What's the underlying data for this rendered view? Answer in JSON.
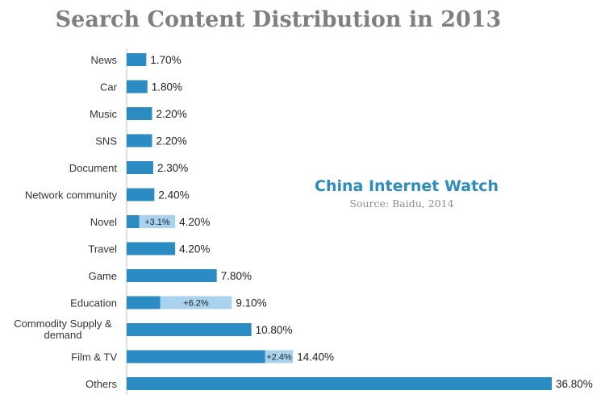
{
  "chart_data": {
    "type": "bar",
    "orientation": "horizontal",
    "title": "Search Content Distribution in 2013",
    "categories": [
      "News",
      "Car",
      "Music",
      "SNS",
      "Document",
      "Network community",
      "Novel",
      "Travel",
      "Game",
      "Education",
      "Commodity Supply & demand",
      "Film & TV",
      "Others"
    ],
    "values": [
      1.7,
      1.8,
      2.2,
      2.2,
      2.3,
      2.4,
      4.2,
      4.2,
      7.8,
      9.1,
      10.8,
      14.4,
      36.8
    ],
    "value_labels": [
      "1.70%",
      "1.80%",
      "2.20%",
      "2.20%",
      "2.30%",
      "2.40%",
      "4.20%",
      "4.20%",
      "7.80%",
      "9.10%",
      "10.80%",
      "14.40%",
      "36.80%"
    ],
    "increments": [
      {
        "category": "Novel",
        "value": 3.1,
        "label": "+3.1%"
      },
      {
        "category": "Education",
        "value": 6.2,
        "label": "+6.2%"
      },
      {
        "category": "Film & TV",
        "value": 2.4,
        "label": "+2.4%"
      }
    ],
    "category_label_lines": {
      "Commodity Supply & demand": [
        "Commodity Supply &",
        "demand"
      ]
    },
    "xlim": [
      0,
      37
    ],
    "grid": false,
    "colors": {
      "base": "#2b8cc4",
      "increment": "#a8d2ee",
      "title": "#7f7f7f"
    }
  },
  "watermark": {
    "brand": "China Internet Watch",
    "brand_color": "#2b8cc4",
    "source": "Source: Baidu, 2014"
  }
}
